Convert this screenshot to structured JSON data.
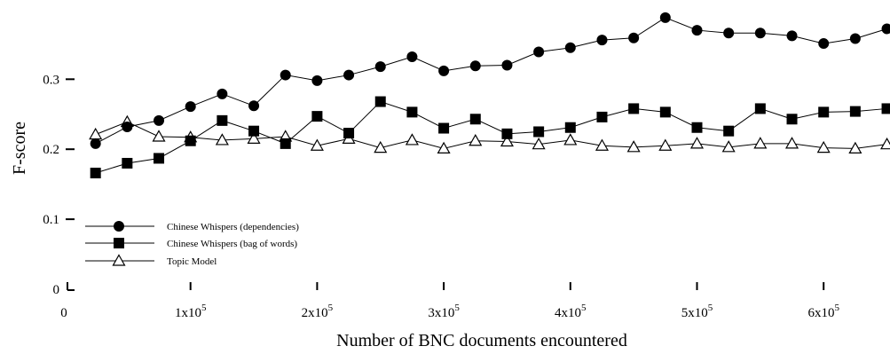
{
  "chart_data": {
    "type": "line",
    "title": "",
    "xlabel": "Number of BNC documents encountered",
    "ylabel": "F-score",
    "xlim": [
      0,
      650000
    ],
    "ylim": [
      0,
      0.4
    ],
    "x_ticks": [
      {
        "value": 0,
        "mant": "0",
        "exp": ""
      },
      {
        "value": 100000,
        "mant": "1x10",
        "exp": "5"
      },
      {
        "value": 200000,
        "mant": "2x10",
        "exp": "5"
      },
      {
        "value": 300000,
        "mant": "3x10",
        "exp": "5"
      },
      {
        "value": 400000,
        "mant": "4x10",
        "exp": "5"
      },
      {
        "value": 500000,
        "mant": "5x10",
        "exp": "5"
      },
      {
        "value": 600000,
        "mant": "6x10",
        "exp": "5"
      }
    ],
    "y_ticks": [
      {
        "value": 0,
        "label": "0"
      },
      {
        "value": 0.1,
        "label": "0.1"
      },
      {
        "value": 0.2,
        "label": "0.2"
      },
      {
        "value": 0.3,
        "label": "0.3"
      }
    ],
    "legend_position": "bottom-left",
    "x": [
      25000,
      50000,
      75000,
      100000,
      125000,
      150000,
      175000,
      200000,
      225000,
      250000,
      275000,
      300000,
      325000,
      350000,
      375000,
      400000,
      425000,
      450000,
      475000,
      500000,
      525000,
      550000,
      575000,
      600000,
      625000,
      650000
    ],
    "series": [
      {
        "name": "Chinese Whispers (dependencies)",
        "marker": "circle",
        "values": [
          0.208,
          0.232,
          0.241,
          0.261,
          0.279,
          0.262,
          0.306,
          0.298,
          0.306,
          0.318,
          0.332,
          0.312,
          0.319,
          0.32,
          0.339,
          0.345,
          0.356,
          0.359,
          0.388,
          0.37,
          0.366,
          0.366,
          0.362,
          0.351,
          0.358,
          0.372
        ]
      },
      {
        "name": "Chinese Whispers (bag of words)",
        "marker": "square",
        "values": [
          0.166,
          0.18,
          0.187,
          0.212,
          0.241,
          0.226,
          0.208,
          0.247,
          0.223,
          0.268,
          0.253,
          0.23,
          0.243,
          0.222,
          0.225,
          0.231,
          0.246,
          0.258,
          0.253,
          0.231,
          0.226,
          0.258,
          0.243,
          0.253,
          0.254,
          0.258
        ]
      },
      {
        "name": "Topic Model",
        "marker": "triangle",
        "values": [
          0.221,
          0.239,
          0.218,
          0.217,
          0.213,
          0.215,
          0.218,
          0.205,
          0.215,
          0.202,
          0.213,
          0.201,
          0.212,
          0.211,
          0.207,
          0.213,
          0.205,
          0.203,
          0.205,
          0.208,
          0.203,
          0.208,
          0.208,
          0.202,
          0.201,
          0.207
        ]
      }
    ]
  }
}
